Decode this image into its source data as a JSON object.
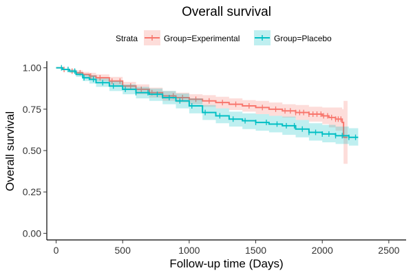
{
  "chart_data": {
    "type": "line",
    "subtype": "kaplan-meier survival curve",
    "title": "Overall survival",
    "xlabel": "Follow-up time (Days)",
    "ylabel": "Overall survival",
    "xlim": [
      -70,
      2630
    ],
    "ylim": [
      -0.04,
      1.04
    ],
    "x_ticks": [
      0,
      500,
      1000,
      1500,
      2000,
      2500
    ],
    "y_ticks": [
      0.0,
      0.25,
      0.5,
      0.75,
      1.0
    ],
    "x_tick_labels": [
      "0",
      "500",
      "1000",
      "1500",
      "2000",
      "2500"
    ],
    "y_tick_labels": [
      "0.00",
      "0.25",
      "0.50",
      "0.75",
      "1.00"
    ],
    "grid": false,
    "legend_title": "Strata",
    "legend_position": "top",
    "series": [
      {
        "name": "Group=Experimental",
        "color": "#F8766D",
        "time": [
          0,
          50,
          100,
          150,
          200,
          250,
          300,
          400,
          500,
          600,
          700,
          800,
          900,
          1000,
          1100,
          1200,
          1300,
          1400,
          1500,
          1600,
          1700,
          1800,
          1900,
          2000,
          2050,
          2100,
          2150,
          2160,
          2190
        ],
        "surv": [
          1.0,
          0.99,
          0.98,
          0.97,
          0.96,
          0.95,
          0.94,
          0.92,
          0.89,
          0.87,
          0.85,
          0.83,
          0.82,
          0.81,
          0.8,
          0.79,
          0.78,
          0.77,
          0.76,
          0.75,
          0.74,
          0.73,
          0.72,
          0.71,
          0.7,
          0.69,
          0.67,
          0.58,
          0.58
        ],
        "lower": [
          1.0,
          0.985,
          0.97,
          0.955,
          0.945,
          0.93,
          0.92,
          0.895,
          0.865,
          0.84,
          0.82,
          0.8,
          0.79,
          0.78,
          0.765,
          0.755,
          0.745,
          0.735,
          0.72,
          0.71,
          0.7,
          0.685,
          0.675,
          0.66,
          0.64,
          0.62,
          0.59,
          0.42,
          0.42
        ],
        "upper": [
          1.0,
          0.995,
          0.99,
          0.985,
          0.975,
          0.97,
          0.96,
          0.945,
          0.915,
          0.9,
          0.88,
          0.86,
          0.85,
          0.84,
          0.835,
          0.825,
          0.815,
          0.805,
          0.8,
          0.79,
          0.78,
          0.775,
          0.765,
          0.76,
          0.76,
          0.76,
          0.75,
          0.8,
          0.8
        ],
        "censor_times": [
          60,
          120,
          180,
          260,
          330,
          420,
          480,
          560,
          640,
          720,
          800,
          880,
          950,
          1050,
          1150,
          1250,
          1350,
          1450,
          1550,
          1650,
          1720,
          1760,
          1800,
          1830,
          1860,
          1900,
          1930,
          1960,
          1990,
          2010,
          2040,
          2070,
          2100,
          2120,
          2140
        ]
      },
      {
        "name": "Group=Placebo",
        "color": "#00BFC4",
        "time": [
          0,
          50,
          100,
          150,
          200,
          250,
          300,
          400,
          500,
          600,
          700,
          800,
          900,
          1000,
          1100,
          1200,
          1300,
          1400,
          1500,
          1600,
          1700,
          1800,
          1900,
          2000,
          2100,
          2200,
          2270
        ],
        "surv": [
          1.0,
          0.99,
          0.98,
          0.96,
          0.94,
          0.93,
          0.91,
          0.89,
          0.87,
          0.85,
          0.84,
          0.82,
          0.8,
          0.77,
          0.73,
          0.71,
          0.69,
          0.68,
          0.67,
          0.66,
          0.65,
          0.63,
          0.61,
          0.6,
          0.59,
          0.58,
          0.58
        ],
        "lower": [
          1.0,
          0.985,
          0.97,
          0.945,
          0.92,
          0.905,
          0.885,
          0.86,
          0.84,
          0.815,
          0.8,
          0.78,
          0.755,
          0.725,
          0.685,
          0.665,
          0.645,
          0.63,
          0.62,
          0.61,
          0.595,
          0.58,
          0.56,
          0.55,
          0.54,
          0.53,
          0.53
        ],
        "upper": [
          1.0,
          0.995,
          0.99,
          0.975,
          0.96,
          0.955,
          0.935,
          0.92,
          0.9,
          0.885,
          0.875,
          0.86,
          0.845,
          0.815,
          0.775,
          0.755,
          0.735,
          0.725,
          0.72,
          0.71,
          0.705,
          0.685,
          0.665,
          0.655,
          0.645,
          0.635,
          0.635
        ],
        "censor_times": [
          40,
          90,
          140,
          210,
          280,
          350,
          430,
          520,
          600,
          690,
          760,
          850,
          930,
          1020,
          1120,
          1230,
          1330,
          1420,
          1500,
          1580,
          1660,
          1730,
          1790,
          1850,
          1900,
          1950,
          2000,
          2050,
          2100,
          2150,
          2200,
          2250
        ]
      }
    ]
  }
}
